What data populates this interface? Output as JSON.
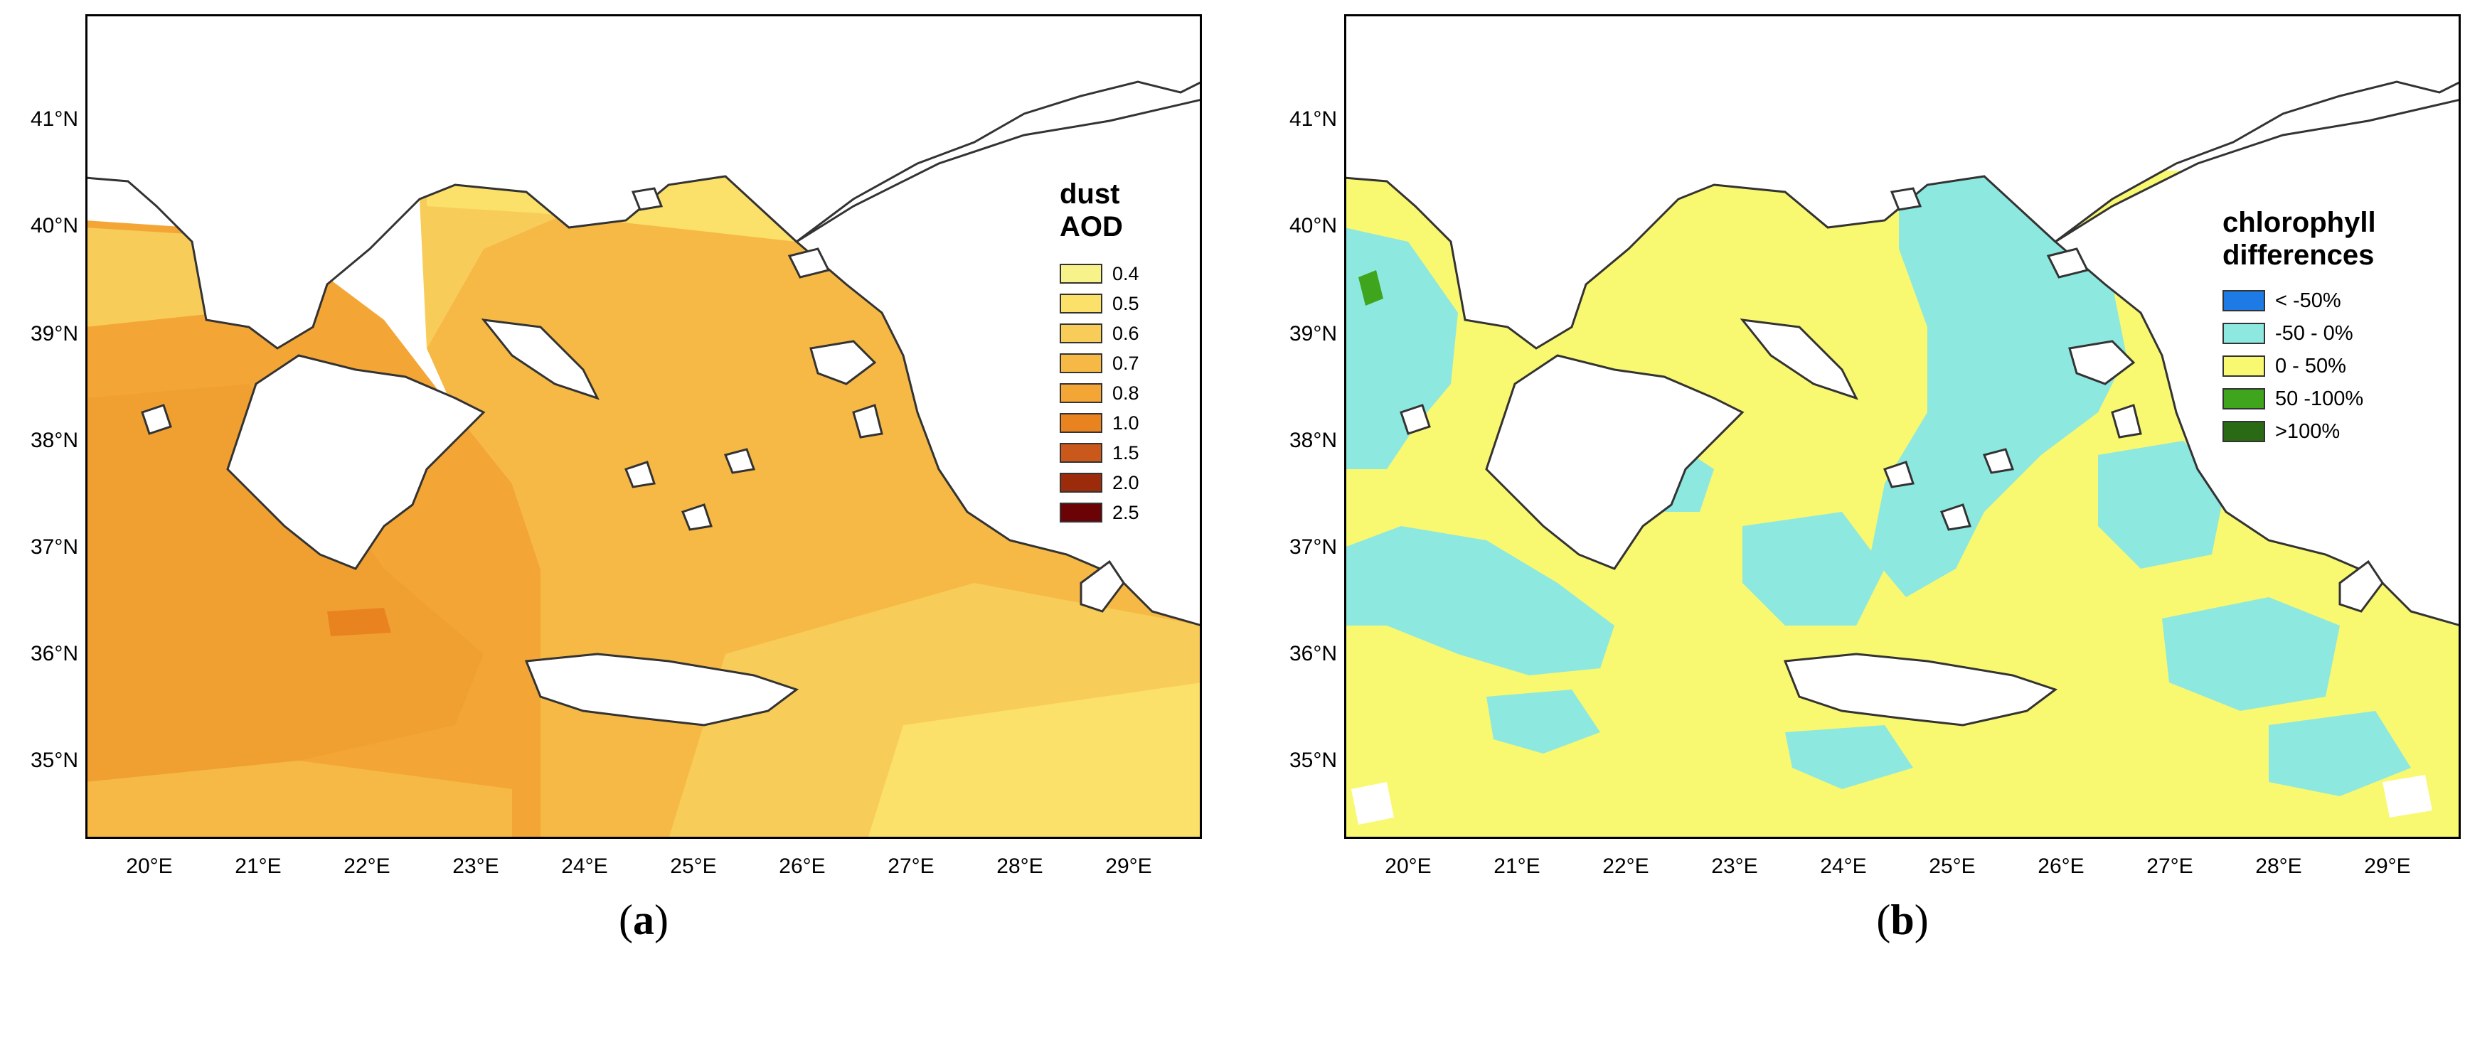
{
  "latitude_labels": [
    "41°N",
    "40°N",
    "39°N",
    "38°N",
    "37°N",
    "36°N",
    "35°N"
  ],
  "longitude_labels": [
    "20°E",
    "21°E",
    "22°E",
    "23°E",
    "24°E",
    "25°E",
    "26°E",
    "27°E",
    "28°E",
    "29°E"
  ],
  "panels": [
    {
      "caption_open": "(",
      "caption_letter": "a",
      "caption_close": ")",
      "legend_title_line1": "dust",
      "legend_title_line2": "AOD",
      "legend": [
        {
          "label": "0.4",
          "color": "#f8f28a"
        },
        {
          "label": "0.5",
          "color": "#fbe06a"
        },
        {
          "label": "0.6",
          "color": "#f8cc58"
        },
        {
          "label": "0.7",
          "color": "#f6b946"
        },
        {
          "label": "0.8",
          "color": "#f3a635"
        },
        {
          "label": "1.0",
          "color": "#e98320"
        },
        {
          "label": "1.5",
          "color": "#c9581a"
        },
        {
          "label": "2.0",
          "color": "#9c2b0c"
        },
        {
          "label": "2.5",
          "color": "#6b0205"
        }
      ]
    },
    {
      "caption_open": "(",
      "caption_letter": "b",
      "caption_close": ")",
      "legend_title_line1": "chlorophyll",
      "legend_title_line2": "differences",
      "legend": [
        {
          "label": "< -50%",
          "color": "#1e7be6"
        },
        {
          "label": "-50 - 0%",
          "color": "#8de8e0"
        },
        {
          "label": "0 - 50%",
          "color": "#f9f871"
        },
        {
          "label": "50 -100%",
          "color": "#3ea51c"
        },
        {
          "label": ">100%",
          "color": "#2b6a14"
        }
      ]
    }
  ]
}
